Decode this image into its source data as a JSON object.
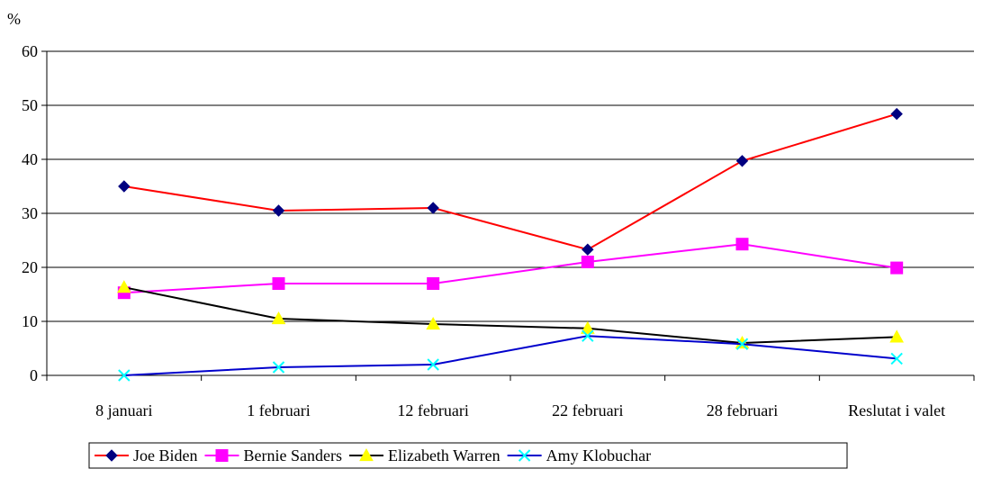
{
  "chart_data": {
    "type": "line",
    "title": "",
    "xlabel": "",
    "ylabel": "%",
    "ylim": [
      0,
      60
    ],
    "yticks": [
      0,
      10,
      20,
      30,
      40,
      50,
      60
    ],
    "grid": true,
    "legend_position": "bottom",
    "categories": [
      "8 januari",
      "1 februari",
      "12 februari",
      "22 februari",
      "28 februari",
      "Reslutat i valet"
    ],
    "series": [
      {
        "name": "Joe Biden",
        "values": [
          35,
          30.5,
          31,
          23.3,
          39.7,
          48.4
        ],
        "line_color": "#ff0000",
        "marker_color": "#000080",
        "marker": "diamond"
      },
      {
        "name": "Bernie Sanders",
        "values": [
          15.3,
          17,
          17,
          21,
          24.3,
          19.9
        ],
        "line_color": "#ff00ff",
        "marker_color": "#ff00ff",
        "marker": "square"
      },
      {
        "name": "Elizabeth Warren",
        "values": [
          16.3,
          10.5,
          9.5,
          8.7,
          6,
          7.1
        ],
        "line_color": "#000000",
        "marker_color": "#ffff00",
        "marker": "triangle"
      },
      {
        "name": "Amy Klobuchar",
        "values": [
          0,
          1.5,
          2,
          7.3,
          5.8,
          3.1
        ],
        "line_color": "#0000cc",
        "marker_color": "#00ffff",
        "marker": "x"
      }
    ]
  }
}
